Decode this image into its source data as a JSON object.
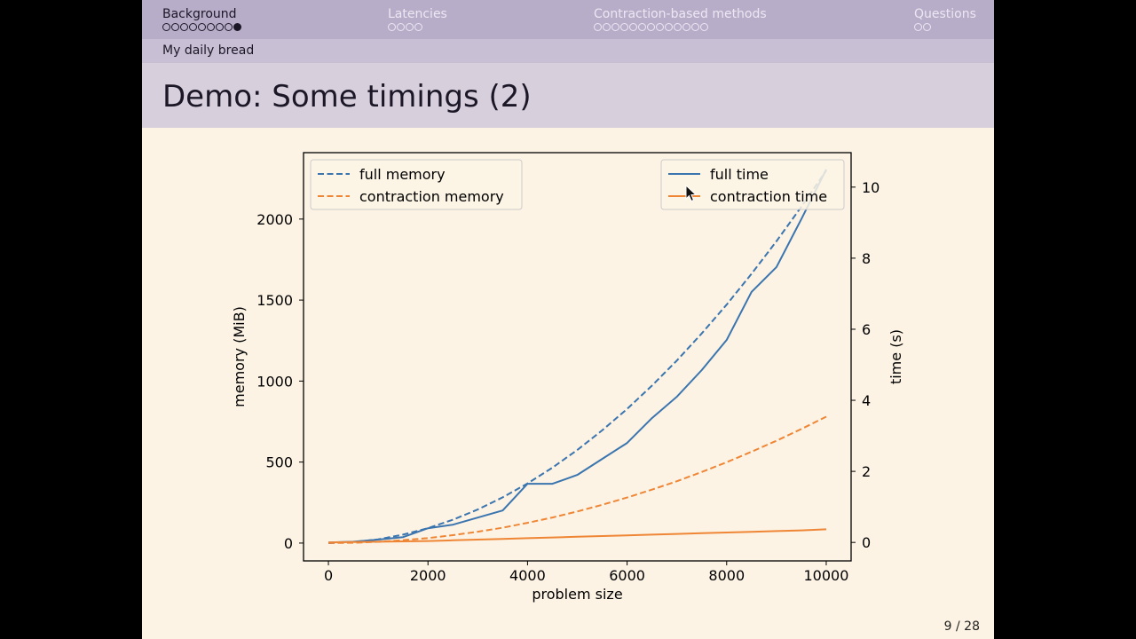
{
  "navigation": {
    "sections": [
      {
        "title": "Background",
        "dots": 9,
        "filled": [
          8
        ],
        "active": true
      },
      {
        "title": "Latencies",
        "dots": 4,
        "filled": [],
        "active": false
      },
      {
        "title": "Contraction-based methods",
        "dots": 13,
        "filled": [],
        "active": false
      },
      {
        "title": "Questions",
        "dots": 2,
        "filled": [],
        "active": false
      }
    ],
    "subsection": "My daily bread"
  },
  "frame_title": "Demo: Some timings (2)",
  "page_number": "9 / 28",
  "chart_data": {
    "type": "line",
    "xlabel": "problem size",
    "ylabel": "memory (MiB)",
    "y2label": "time (s)",
    "xlim": [
      -500,
      10500
    ],
    "ylim": [
      -110,
      2410
    ],
    "y2lim": [
      -0.52,
      10.97
    ],
    "xticks": [
      0,
      2000,
      4000,
      6000,
      8000,
      10000
    ],
    "yticks": [
      0,
      500,
      1000,
      1500,
      2000
    ],
    "y2ticks": [
      0,
      2,
      4,
      6,
      8,
      10
    ],
    "legend_memory_placement": "top-left",
    "legend_time_placement": "top-right",
    "grid": false,
    "x": [
      0,
      500,
      1000,
      1500,
      2000,
      2500,
      3000,
      3500,
      4000,
      4500,
      5000,
      5500,
      6000,
      6500,
      7000,
      7500,
      8000,
      8500,
      9000,
      9500,
      10000
    ],
    "series": [
      {
        "name": "full memory",
        "axis": "left",
        "style": "dashed",
        "color": "#3b75af",
        "values": [
          0,
          6,
          23,
          52,
          92,
          144,
          207,
          282,
          368,
          466,
          575,
          696,
          828,
          972,
          1127,
          1294,
          1472,
          1662,
          1863,
          2076,
          2300
        ]
      },
      {
        "name": "contraction memory",
        "axis": "left",
        "style": "dashed",
        "color": "#ef8636",
        "values": [
          0,
          2,
          8,
          18,
          31,
          49,
          70,
          95,
          125,
          158,
          195,
          236,
          281,
          330,
          382,
          439,
          499,
          564,
          632,
          704,
          780
        ]
      },
      {
        "name": "full time",
        "axis": "right",
        "style": "solid",
        "color": "#3b75af",
        "values": [
          0,
          0.02,
          0.08,
          0.15,
          0.4,
          0.5,
          0.7,
          0.9,
          1.65,
          1.65,
          1.9,
          2.35,
          2.8,
          3.5,
          4.1,
          4.85,
          5.7,
          7.05,
          7.75,
          9.1,
          10.5
        ]
      },
      {
        "name": "contraction time",
        "axis": "right",
        "style": "solid",
        "color": "#ef8636",
        "values": [
          0,
          0.01,
          0.02,
          0.03,
          0.04,
          0.06,
          0.08,
          0.1,
          0.12,
          0.14,
          0.16,
          0.18,
          0.2,
          0.22,
          0.24,
          0.26,
          0.28,
          0.3,
          0.32,
          0.34,
          0.37
        ]
      }
    ]
  },
  "colors": {
    "navbar": "#b8adc9",
    "subbar": "#c8bfd5",
    "titlebar": "#d8cfdd",
    "slide_background": "#fcf3e4",
    "plot_background": "#fcf3e4",
    "text_dark": "#1b1726",
    "nav_inactive": "#ece7f2"
  }
}
